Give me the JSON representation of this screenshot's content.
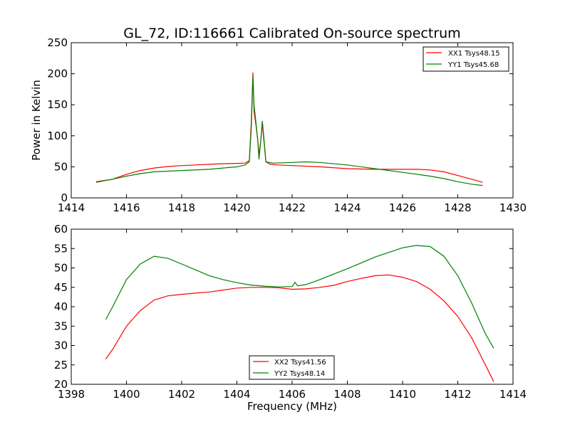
{
  "chart_data": [
    {
      "type": "line",
      "title": "GL_72, ID:116661 Calibrated On-source spectrum",
      "xlabel": "",
      "ylabel": "Power in Kelvin",
      "xlim": [
        1414,
        1430
      ],
      "ylim": [
        0,
        250
      ],
      "xticks": [
        "1414",
        "1416",
        "1418",
        "1420",
        "1422",
        "1424",
        "1426",
        "1428",
        "1430"
      ],
      "yticks": [
        "0",
        "50",
        "100",
        "150",
        "200",
        "250"
      ],
      "legend_position": "top-right",
      "grid": false,
      "series": [
        {
          "name": "XX1 Tsys48.15",
          "color": "#ff0000",
          "points": [
            [
              1414.9,
              26
            ],
            [
              1415.5,
              30
            ],
            [
              1416,
              38
            ],
            [
              1416.5,
              44
            ],
            [
              1417,
              48
            ],
            [
              1417.5,
              50.5
            ],
            [
              1418,
              52
            ],
            [
              1418.5,
              53
            ],
            [
              1419,
              54
            ],
            [
              1419.5,
              55
            ],
            [
              1420,
              55.5
            ],
            [
              1420.3,
              56
            ],
            [
              1420.45,
              60
            ],
            [
              1420.52,
              120
            ],
            [
              1420.58,
              202
            ],
            [
              1420.62,
              140
            ],
            [
              1420.68,
              120
            ],
            [
              1420.75,
              95
            ],
            [
              1420.8,
              70
            ],
            [
              1420.86,
              90
            ],
            [
              1420.92,
              120
            ],
            [
              1420.97,
              95
            ],
            [
              1421.05,
              58
            ],
            [
              1421.2,
              54
            ],
            [
              1421.5,
              53
            ],
            [
              1422,
              52
            ],
            [
              1423,
              50
            ],
            [
              1424,
              47
            ],
            [
              1425,
              46
            ],
            [
              1426,
              46
            ],
            [
              1426.5,
              46
            ],
            [
              1427,
              45
            ],
            [
              1427.5,
              42
            ],
            [
              1428,
              36
            ],
            [
              1428.5,
              30
            ],
            [
              1428.9,
              25
            ]
          ]
        },
        {
          "name": "YY1 Tsys45.68",
          "color": "#008000",
          "points": [
            [
              1414.9,
              25
            ],
            [
              1415.5,
              30
            ],
            [
              1416,
              35
            ],
            [
              1416.5,
              39
            ],
            [
              1417,
              42
            ],
            [
              1418,
              44
            ],
            [
              1419,
              46
            ],
            [
              1419.5,
              48
            ],
            [
              1420,
              50
            ],
            [
              1420.3,
              53
            ],
            [
              1420.45,
              58
            ],
            [
              1420.52,
              110
            ],
            [
              1420.58,
              196
            ],
            [
              1420.62,
              150
            ],
            [
              1420.68,
              125
            ],
            [
              1420.75,
              95
            ],
            [
              1420.8,
              62
            ],
            [
              1420.86,
              90
            ],
            [
              1420.92,
              124
            ],
            [
              1420.97,
              100
            ],
            [
              1421.05,
              58
            ],
            [
              1421.3,
              56
            ],
            [
              1422,
              57
            ],
            [
              1422.5,
              58
            ],
            [
              1423,
              57
            ],
            [
              1424,
              53
            ],
            [
              1425,
              47
            ],
            [
              1426,
              41
            ],
            [
              1427,
              35
            ],
            [
              1427.5,
              31
            ],
            [
              1428,
              26
            ],
            [
              1428.5,
              22
            ],
            [
              1428.9,
              20
            ]
          ]
        }
      ]
    },
    {
      "type": "line",
      "title": "",
      "xlabel": "Frequency (MHz)",
      "ylabel": "",
      "xlim": [
        1398,
        1414
      ],
      "ylim": [
        20,
        60
      ],
      "xticks": [
        "1398",
        "1400",
        "1402",
        "1404",
        "1406",
        "1408",
        "1410",
        "1412",
        "1414"
      ],
      "yticks": [
        "20",
        "25",
        "30",
        "35",
        "40",
        "45",
        "50",
        "55",
        "60"
      ],
      "legend_position": "bottom-center",
      "grid": false,
      "series": [
        {
          "name": "XX2 Tsys41.56",
          "color": "#ff0000",
          "points": [
            [
              1399.25,
              26.5
            ],
            [
              1399.5,
              29
            ],
            [
              1400,
              35
            ],
            [
              1400.5,
              39
            ],
            [
              1401,
              41.7
            ],
            [
              1401.5,
              42.8
            ],
            [
              1402,
              43.2
            ],
            [
              1402.5,
              43.5
            ],
            [
              1403,
              43.8
            ],
            [
              1403.5,
              44.3
            ],
            [
              1404,
              44.8
            ],
            [
              1404.5,
              45
            ],
            [
              1405,
              45
            ],
            [
              1405.5,
              44.9
            ],
            [
              1406,
              44.5
            ],
            [
              1406.5,
              44.6
            ],
            [
              1407,
              45
            ],
            [
              1407.5,
              45.5
            ],
            [
              1408,
              46.5
            ],
            [
              1408.5,
              47.3
            ],
            [
              1409,
              48
            ],
            [
              1409.5,
              48.2
            ],
            [
              1410,
              47.6
            ],
            [
              1410.5,
              46.5
            ],
            [
              1411,
              44.5
            ],
            [
              1411.5,
              41.5
            ],
            [
              1412,
              37.5
            ],
            [
              1412.5,
              32
            ],
            [
              1413,
              25
            ],
            [
              1413.3,
              20.7
            ]
          ]
        },
        {
          "name": "YY2 Tsys48.14",
          "color": "#008000",
          "points": [
            [
              1399.25,
              36.7
            ],
            [
              1399.5,
              40
            ],
            [
              1400,
              47
            ],
            [
              1400.5,
              51
            ],
            [
              1401,
              53
            ],
            [
              1401.5,
              52.5
            ],
            [
              1402,
              51
            ],
            [
              1402.5,
              49.5
            ],
            [
              1403,
              48
            ],
            [
              1403.5,
              47
            ],
            [
              1404,
              46.2
            ],
            [
              1404.5,
              45.6
            ],
            [
              1405,
              45.3
            ],
            [
              1405.5,
              45.1
            ],
            [
              1406,
              45.2
            ],
            [
              1406.1,
              46.3
            ],
            [
              1406.2,
              45.4
            ],
            [
              1406.5,
              45.7
            ],
            [
              1407,
              47
            ],
            [
              1407.5,
              48.4
            ],
            [
              1408,
              49.8
            ],
            [
              1408.5,
              51.3
            ],
            [
              1409,
              52.8
            ],
            [
              1409.5,
              54
            ],
            [
              1410,
              55.2
            ],
            [
              1410.5,
              55.8
            ],
            [
              1411,
              55.5
            ],
            [
              1411.5,
              53
            ],
            [
              1412,
              48
            ],
            [
              1412.5,
              41
            ],
            [
              1413,
              33
            ],
            [
              1413.3,
              29.3
            ]
          ]
        }
      ]
    }
  ]
}
